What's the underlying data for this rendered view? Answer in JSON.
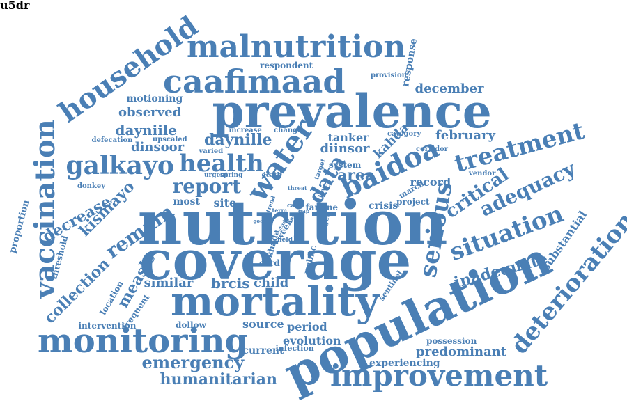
{
  "color": "#4a7fb5",
  "words": [
    {
      "id": "prevalence",
      "text": "prevalence"
    },
    {
      "id": "nutrition",
      "text": "nutrition"
    },
    {
      "id": "coverage",
      "text": "coverage"
    },
    {
      "id": "population",
      "text": "population"
    },
    {
      "id": "mortality",
      "text": "mortality"
    },
    {
      "id": "monitoring",
      "text": "monitoring"
    },
    {
      "id": "improvement",
      "text": "improvement"
    },
    {
      "id": "malnutrition",
      "text": "malnutrition"
    },
    {
      "id": "caafimaad",
      "text": "caafimaad"
    },
    {
      "id": "household",
      "text": "household"
    },
    {
      "id": "vaccination",
      "text": "vaccination"
    },
    {
      "id": "galkayo",
      "text": "galkayo"
    },
    {
      "id": "health",
      "text": "health"
    },
    {
      "id": "water",
      "text": "water"
    },
    {
      "id": "baidoa",
      "text": "baidoa"
    },
    {
      "id": "treatment",
      "text": "treatment"
    },
    {
      "id": "situation",
      "text": "situation"
    },
    {
      "id": "serious",
      "text": "serious"
    },
    {
      "id": "deterioration",
      "text": "deterioration"
    },
    {
      "id": "adequacy",
      "text": "adequacy"
    },
    {
      "id": "critical",
      "text": "critical"
    },
    {
      "id": "report",
      "text": "report"
    },
    {
      "id": "remain",
      "text": "remain"
    },
    {
      "id": "kismayo",
      "text": "kismayo"
    },
    {
      "id": "decrease",
      "text": "decrease"
    },
    {
      "id": "collection",
      "text": "collection"
    },
    {
      "id": "measle",
      "text": "measle"
    },
    {
      "id": "emergency",
      "text": "emergency"
    },
    {
      "id": "humanitarian",
      "text": "humanitarian"
    },
    {
      "id": "data",
      "text": "data"
    },
    {
      "id": "dayniile",
      "text": "dayniile"
    },
    {
      "id": "daynille",
      "text": "daynille"
    },
    {
      "id": "dinsoor",
      "text": "dinsoor"
    },
    {
      "id": "diinsor",
      "text": "diinsor"
    },
    {
      "id": "observed",
      "text": "observed"
    },
    {
      "id": "motioning",
      "text": "motioning"
    },
    {
      "id": "december",
      "text": "december"
    },
    {
      "id": "february",
      "text": "february"
    },
    {
      "id": "tanker",
      "text": "tanker"
    },
    {
      "id": "area",
      "text": "area"
    },
    {
      "id": "kahda",
      "text": "kahda"
    },
    {
      "id": "response",
      "text": "response"
    },
    {
      "id": "respondent",
      "text": "respondent"
    },
    {
      "id": "provision",
      "text": "provision"
    },
    {
      "id": "inadequate",
      "text": "inadequate"
    },
    {
      "id": "substantial",
      "text": "substantial"
    },
    {
      "id": "brcis",
      "text": "brcis"
    },
    {
      "id": "child",
      "text": "child"
    },
    {
      "id": "similar",
      "text": "similar"
    },
    {
      "id": "source",
      "text": "source"
    },
    {
      "id": "period",
      "text": "period"
    },
    {
      "id": "evolution",
      "text": "evolution"
    },
    {
      "id": "current",
      "text": "current"
    },
    {
      "id": "predominant",
      "text": "predominant"
    },
    {
      "id": "possession",
      "text": "possession"
    },
    {
      "id": "experiencing",
      "text": "experiencing"
    },
    {
      "id": "intervention",
      "text": "intervention"
    },
    {
      "id": "dollow",
      "text": "dollow"
    },
    {
      "id": "frequent",
      "text": "frequent"
    },
    {
      "id": "location",
      "text": "location"
    },
    {
      "id": "threshold",
      "text": "threshold"
    },
    {
      "id": "proportion",
      "text": "proportion"
    },
    {
      "id": "donkey",
      "text": "donkey"
    },
    {
      "id": "most",
      "text": "most"
    },
    {
      "id": "site",
      "text": "site"
    },
    {
      "id": "record",
      "text": "record"
    },
    {
      "id": "vendor",
      "text": "vendor"
    },
    {
      "id": "corridor",
      "text": "corridor"
    },
    {
      "id": "category",
      "text": "category"
    },
    {
      "id": "system",
      "text": "system"
    },
    {
      "id": "crisis",
      "text": "crisis"
    },
    {
      "id": "project",
      "text": "project"
    },
    {
      "id": "march",
      "text": "march"
    },
    {
      "id": "famine",
      "text": "famine"
    },
    {
      "id": "sentinel",
      "text": "sentinel"
    },
    {
      "id": "card",
      "text": "card"
    },
    {
      "id": "public",
      "text": "public"
    },
    {
      "id": "infection",
      "text": "infection"
    },
    {
      "id": "defecation",
      "text": "defecation"
    },
    {
      "id": "upscaled",
      "text": "upscaled"
    },
    {
      "id": "varied",
      "text": "varied"
    },
    {
      "id": "increase",
      "text": "increase"
    },
    {
      "id": "change",
      "text": "change"
    },
    {
      "id": "urgent",
      "text": "urgent"
    },
    {
      "id": "spring",
      "text": "spring"
    },
    {
      "id": "death",
      "text": "death"
    },
    {
      "id": "threat",
      "text": "threat"
    },
    {
      "id": "target",
      "text": "target"
    },
    {
      "id": "level",
      "text": "level"
    },
    {
      "id": "aged",
      "text": "aged"
    },
    {
      "id": "usd",
      "text": "u5dr"
    },
    {
      "id": "week",
      "text": "week"
    },
    {
      "id": "khada",
      "text": "khada"
    },
    {
      "id": "field",
      "text": "field"
    },
    {
      "id": "cart",
      "text": "cart"
    },
    {
      "id": "term",
      "text": "term"
    },
    {
      "id": "trend",
      "text": "trend"
    },
    {
      "id": "operate",
      "text": "operate"
    },
    {
      "id": "tag",
      "text": "tag"
    },
    {
      "id": "gap",
      "text": "gap"
    },
    {
      "id": "good",
      "text": "good"
    },
    {
      "id": "study",
      "text": "study"
    }
  ]
}
